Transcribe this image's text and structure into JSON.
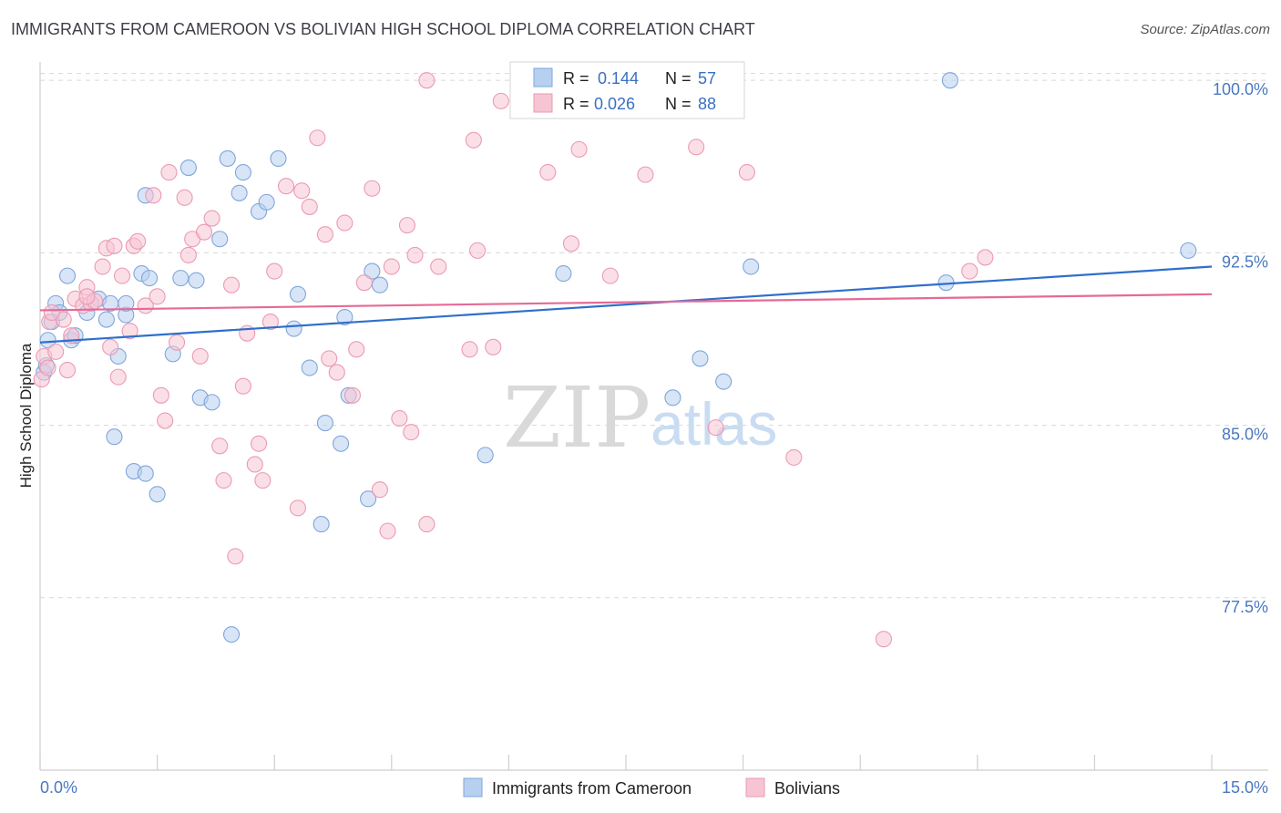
{
  "title": "IMMIGRANTS FROM CAMEROON VS BOLIVIAN HIGH SCHOOL DIPLOMA CORRELATION CHART",
  "source": "Source: ZipAtlas.com",
  "watermark": {
    "zip": "ZIP",
    "atlas": "atlas"
  },
  "colors": {
    "blue_fill": "#b8d0f0",
    "blue_stroke": "#7fa6da",
    "blue_line": "#2f6fcc",
    "pink_fill": "#f7c4d4",
    "pink_stroke": "#eb9ab5",
    "pink_line": "#e56a97",
    "tick_text": "#4a78c2",
    "grid": "#d8d8d8"
  },
  "stats": {
    "r_label": "R =",
    "n_label": "N =",
    "rows": [
      {
        "series": "blue",
        "r": "0.144",
        "n": "57"
      },
      {
        "series": "pink",
        "r": "0.026",
        "n": "88"
      }
    ]
  },
  "chart_data": {
    "type": "scatter",
    "xlabel": "",
    "ylabel": "High School Diploma",
    "xlim": [
      0,
      15
    ],
    "ylim": [
      70,
      100.8
    ],
    "x_tick_labels": [
      "0.0%",
      "15.0%"
    ],
    "y_ticks": [
      77.5,
      85.0,
      92.5,
      100.0
    ],
    "y_tick_labels": [
      "77.5%",
      "85.0%",
      "92.5%",
      "100.0%"
    ],
    "grid": "horizontal dashed",
    "legend_position": "bottom-center",
    "series": [
      {
        "name": "Immigrants from Cameroon",
        "color": "blue",
        "trend": {
          "x": [
            0,
            15
          ],
          "y": [
            88.6,
            91.9
          ]
        },
        "points": [
          [
            0.05,
            87.3
          ],
          [
            0.08,
            87.6
          ],
          [
            0.1,
            88.7
          ],
          [
            0.15,
            89.5
          ],
          [
            0.2,
            90.3
          ],
          [
            0.25,
            89.9
          ],
          [
            0.35,
            91.5
          ],
          [
            0.4,
            88.7
          ],
          [
            0.45,
            88.9
          ],
          [
            0.6,
            89.9
          ],
          [
            0.75,
            90.5
          ],
          [
            0.85,
            89.6
          ],
          [
            0.9,
            90.3
          ],
          [
            1.0,
            88.0
          ],
          [
            0.95,
            84.5
          ],
          [
            1.1,
            89.8
          ],
          [
            1.2,
            83.0
          ],
          [
            1.3,
            91.6
          ],
          [
            1.35,
            95.0
          ],
          [
            1.4,
            91.4
          ],
          [
            1.5,
            82.0
          ],
          [
            1.7,
            88.1
          ],
          [
            1.8,
            91.4
          ],
          [
            1.9,
            96.2
          ],
          [
            2.0,
            91.3
          ],
          [
            2.05,
            86.2
          ],
          [
            2.2,
            86.0
          ],
          [
            2.3,
            93.1
          ],
          [
            2.4,
            96.6
          ],
          [
            2.55,
            95.1
          ],
          [
            2.6,
            96.0
          ],
          [
            2.8,
            94.3
          ],
          [
            2.9,
            94.7
          ],
          [
            3.05,
            96.6
          ],
          [
            3.25,
            89.2
          ],
          [
            3.3,
            90.7
          ],
          [
            3.45,
            87.5
          ],
          [
            3.6,
            80.7
          ],
          [
            3.65,
            85.1
          ],
          [
            3.85,
            84.2
          ],
          [
            3.9,
            89.7
          ],
          [
            3.95,
            86.3
          ],
          [
            4.2,
            81.8
          ],
          [
            4.25,
            91.7
          ],
          [
            4.35,
            91.1
          ],
          [
            2.45,
            75.9
          ],
          [
            1.35,
            82.9
          ],
          [
            5.7,
            83.7
          ],
          [
            6.7,
            91.6
          ],
          [
            8.1,
            86.2
          ],
          [
            8.45,
            87.9
          ],
          [
            8.75,
            86.9
          ],
          [
            9.1,
            91.9
          ],
          [
            11.6,
            91.2
          ],
          [
            11.65,
            100.0
          ],
          [
            14.7,
            92.6
          ],
          [
            1.1,
            90.3
          ]
        ]
      },
      {
        "name": "Bolivians",
        "color": "pink",
        "trend": {
          "x": [
            0,
            15
          ],
          "y": [
            90.0,
            90.7
          ]
        },
        "points": [
          [
            0.02,
            87.0
          ],
          [
            0.05,
            88.0
          ],
          [
            0.1,
            87.5
          ],
          [
            0.12,
            89.5
          ],
          [
            0.2,
            88.2
          ],
          [
            0.3,
            89.6
          ],
          [
            0.35,
            87.4
          ],
          [
            0.4,
            88.9
          ],
          [
            0.45,
            90.5
          ],
          [
            0.55,
            90.2
          ],
          [
            0.6,
            91.0
          ],
          [
            0.65,
            90.3
          ],
          [
            0.7,
            90.4
          ],
          [
            0.8,
            91.9
          ],
          [
            0.85,
            92.7
          ],
          [
            0.9,
            88.4
          ],
          [
            0.95,
            92.8
          ],
          [
            1.0,
            87.1
          ],
          [
            1.05,
            91.5
          ],
          [
            1.15,
            89.1
          ],
          [
            1.2,
            92.8
          ],
          [
            1.25,
            93.0
          ],
          [
            1.35,
            90.2
          ],
          [
            1.45,
            95.0
          ],
          [
            1.5,
            90.6
          ],
          [
            1.55,
            86.3
          ],
          [
            1.6,
            85.2
          ],
          [
            1.65,
            96.0
          ],
          [
            1.75,
            88.6
          ],
          [
            1.85,
            94.9
          ],
          [
            1.9,
            92.4
          ],
          [
            1.95,
            93.1
          ],
          [
            2.05,
            88.0
          ],
          [
            2.1,
            93.4
          ],
          [
            2.2,
            94.0
          ],
          [
            2.3,
            84.1
          ],
          [
            2.35,
            82.6
          ],
          [
            2.45,
            91.1
          ],
          [
            2.5,
            79.3
          ],
          [
            2.6,
            86.7
          ],
          [
            2.65,
            89.0
          ],
          [
            2.75,
            83.3
          ],
          [
            2.8,
            84.2
          ],
          [
            2.85,
            82.6
          ],
          [
            2.95,
            89.5
          ],
          [
            3.0,
            91.7
          ],
          [
            3.15,
            95.4
          ],
          [
            3.3,
            81.4
          ],
          [
            3.35,
            95.2
          ],
          [
            3.45,
            94.5
          ],
          [
            3.55,
            97.5
          ],
          [
            3.65,
            93.3
          ],
          [
            3.7,
            87.9
          ],
          [
            3.8,
            87.3
          ],
          [
            3.9,
            93.8
          ],
          [
            4.0,
            86.3
          ],
          [
            4.05,
            88.3
          ],
          [
            4.15,
            91.2
          ],
          [
            4.25,
            95.3
          ],
          [
            4.35,
            82.2
          ],
          [
            4.45,
            80.4
          ],
          [
            4.5,
            91.9
          ],
          [
            4.6,
            85.3
          ],
          [
            4.7,
            93.7
          ],
          [
            4.75,
            84.7
          ],
          [
            4.8,
            92.4
          ],
          [
            4.95,
            80.7
          ],
          [
            4.95,
            100.0
          ],
          [
            5.1,
            91.9
          ],
          [
            5.5,
            88.3
          ],
          [
            5.55,
            97.4
          ],
          [
            5.6,
            92.6
          ],
          [
            5.8,
            88.4
          ],
          [
            5.9,
            99.1
          ],
          [
            6.5,
            96.0
          ],
          [
            6.8,
            92.9
          ],
          [
            6.9,
            97.0
          ],
          [
            7.3,
            91.5
          ],
          [
            7.75,
            95.9
          ],
          [
            8.4,
            97.1
          ],
          [
            8.65,
            84.9
          ],
          [
            9.05,
            96.0
          ],
          [
            9.65,
            83.6
          ],
          [
            10.8,
            75.7
          ],
          [
            11.9,
            91.7
          ],
          [
            12.1,
            92.3
          ],
          [
            0.15,
            89.9
          ],
          [
            0.6,
            90.6
          ]
        ]
      }
    ]
  }
}
